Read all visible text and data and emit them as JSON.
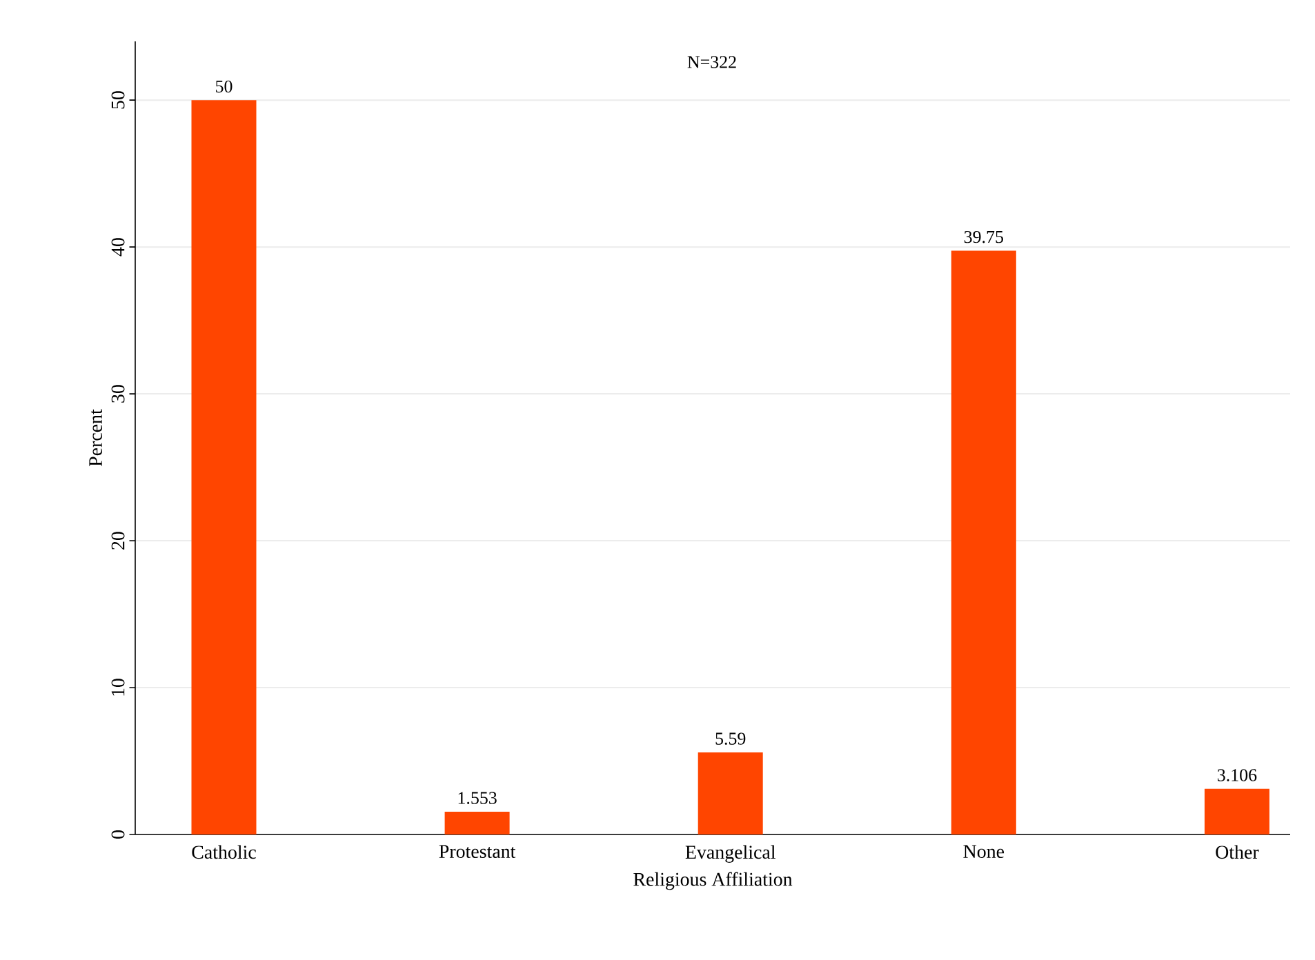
{
  "chart_data": {
    "type": "bar",
    "subtitle": "N=322",
    "xlabel": "Religious Affiliation",
    "ylabel": "Percent",
    "categories": [
      "Catholic",
      "Protestant",
      "Evangelical",
      "None",
      "Other"
    ],
    "values": [
      50,
      1.553,
      5.59,
      39.75,
      3.106
    ],
    "color": "#ff4500",
    "ylim": [
      0,
      54
    ],
    "yticks": [
      0,
      10,
      20,
      30,
      40,
      50
    ],
    "grid": "y",
    "data_labels": true
  }
}
